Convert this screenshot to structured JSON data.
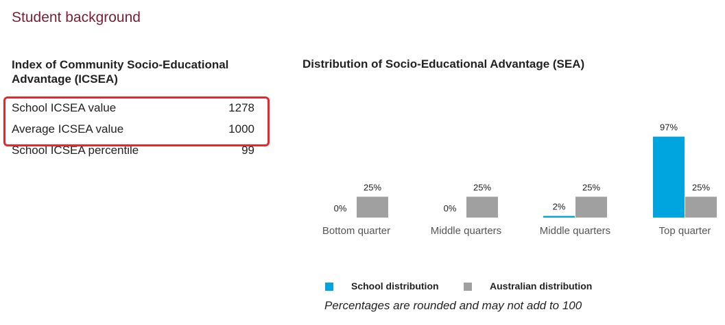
{
  "section_title": "Student background",
  "icsea": {
    "heading": "Index of Community Socio-Educational Advantage (ICSEA)",
    "rows": [
      {
        "label": "School ICSEA value",
        "value": "1278"
      },
      {
        "label": "Average ICSEA value",
        "value": "1000"
      },
      {
        "label": "School ICSEA percentile",
        "value": "99"
      }
    ]
  },
  "sea": {
    "heading": "Distribution of Socio-Educational Advantage (SEA)",
    "note": "Percentages are rounded and may not add to 100"
  },
  "chart_data": {
    "type": "bar",
    "title": "Distribution of Socio-Educational Advantage (SEA)",
    "categories": [
      "Bottom quarter",
      "Middle quarters",
      "Middle quarters",
      "Top quarter"
    ],
    "series": [
      {
        "name": "School distribution",
        "values": [
          0,
          0,
          2,
          97
        ],
        "labels": [
          "0%",
          "0%",
          "2%",
          "97%"
        ],
        "color": "#00a5e0"
      },
      {
        "name": "Australian distribution",
        "values": [
          25,
          25,
          25,
          25
        ],
        "labels": [
          "25%",
          "25%",
          "25%",
          "25%"
        ],
        "color": "#a0a0a0"
      }
    ],
    "ylim": [
      0,
      100
    ],
    "grid": false,
    "legend": "bottom"
  },
  "colors": {
    "title": "#7a1f32",
    "highlight": "#e8262b"
  }
}
